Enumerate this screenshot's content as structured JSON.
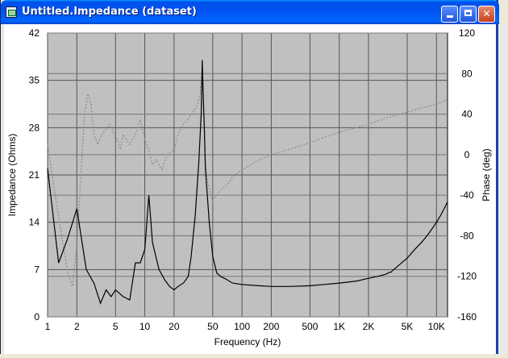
{
  "window": {
    "title": "Untitled.Impedance (dataset)",
    "buttons": {
      "minimize": "",
      "maximize": "",
      "close": "✕"
    }
  },
  "chart_data": {
    "type": "line",
    "xlabel": "Frequency (Hz)",
    "ylabel": "Impedance (Ohms)",
    "y2label": "Phase (deg)",
    "xscale": "log",
    "xlim": [
      1,
      13000
    ],
    "ylim": [
      0,
      42
    ],
    "y2lim": [
      -160,
      120
    ],
    "grid": true,
    "x_ticks": [
      {
        "v": 1,
        "label": "1"
      },
      {
        "v": 2,
        "label": "2"
      },
      {
        "v": 5,
        "label": "5"
      },
      {
        "v": 10,
        "label": "10"
      },
      {
        "v": 20,
        "label": "20"
      },
      {
        "v": 50,
        "label": "50"
      },
      {
        "v": 100,
        "label": "100"
      },
      {
        "v": 200,
        "label": "200"
      },
      {
        "v": 500,
        "label": "500"
      },
      {
        "v": 1000,
        "label": "1K"
      },
      {
        "v": 2000,
        "label": "2K"
      },
      {
        "v": 5000,
        "label": "5K"
      },
      {
        "v": 10000,
        "label": "10K"
      }
    ],
    "y_ticks": [
      0,
      7,
      14,
      21,
      28,
      35,
      42
    ],
    "y2_ticks": [
      -160,
      -120,
      -80,
      -40,
      0,
      40,
      80,
      120
    ],
    "series": [
      {
        "axis": "left",
        "style": "solid",
        "color": "#000000",
        "x": [
          1,
          1.3,
          1.6,
          2,
          2.5,
          3,
          3.5,
          4,
          4.5,
          5,
          6,
          7,
          8,
          9,
          10,
          11,
          12,
          14,
          16,
          18,
          20,
          22,
          25,
          28,
          30,
          33,
          36,
          38,
          39,
          40,
          41,
          42,
          44,
          46,
          50,
          55,
          60,
          70,
          80,
          100,
          150,
          200,
          300,
          500,
          700,
          1000,
          1500,
          2000,
          2500,
          3000,
          3300,
          3400,
          3500,
          4000,
          5000,
          6000,
          7000,
          8000,
          9000,
          10000,
          11000,
          12000,
          13000
        ],
        "values": [
          22,
          8,
          11.5,
          16,
          7,
          5,
          2,
          4,
          3,
          4,
          3,
          2.5,
          8,
          8,
          10,
          18,
          11,
          7,
          5.5,
          4.5,
          4,
          4.5,
          5,
          6,
          9,
          15,
          23,
          30,
          38,
          32,
          28,
          22,
          18,
          14,
          9,
          6.5,
          6,
          5.5,
          5,
          4.8,
          4.6,
          4.5,
          4.5,
          4.6,
          4.8,
          5,
          5.3,
          5.7,
          6,
          6.3,
          6.6,
          6.6,
          6.8,
          7.5,
          8.7,
          10,
          11,
          12,
          13,
          14,
          15,
          16,
          17
        ]
      },
      {
        "axis": "right",
        "style": "dotted",
        "color": "#8a8a8a",
        "x": [
          1,
          1.2,
          1.4,
          1.6,
          1.8,
          2,
          2.2,
          2.4,
          2.6,
          2.8,
          3,
          3.3,
          3.6,
          4,
          4.4,
          4.8,
          5.2,
          5.6,
          6,
          7,
          8,
          9,
          10,
          11,
          12,
          13,
          15,
          17,
          20,
          22,
          25,
          28,
          30,
          33,
          35,
          37,
          39,
          40,
          41,
          42,
          45,
          48,
          50,
          55,
          60,
          70,
          80,
          100,
          150,
          200,
          300,
          500,
          700,
          1000,
          2000,
          3000,
          5000,
          7000,
          10000,
          13000
        ],
        "values": [
          10,
          -40,
          -80,
          -115,
          -130,
          -90,
          -20,
          40,
          60,
          50,
          20,
          10,
          20,
          25,
          30,
          20,
          15,
          5,
          20,
          10,
          20,
          35,
          15,
          5,
          -10,
          -5,
          -15,
          0,
          5,
          20,
          30,
          35,
          40,
          45,
          50,
          60,
          80,
          60,
          30,
          -10,
          -30,
          -40,
          -45,
          -40,
          -35,
          -30,
          -22,
          -15,
          -5,
          0,
          5,
          12,
          17,
          22,
          30,
          36,
          42,
          46,
          50,
          54
        ]
      }
    ]
  }
}
